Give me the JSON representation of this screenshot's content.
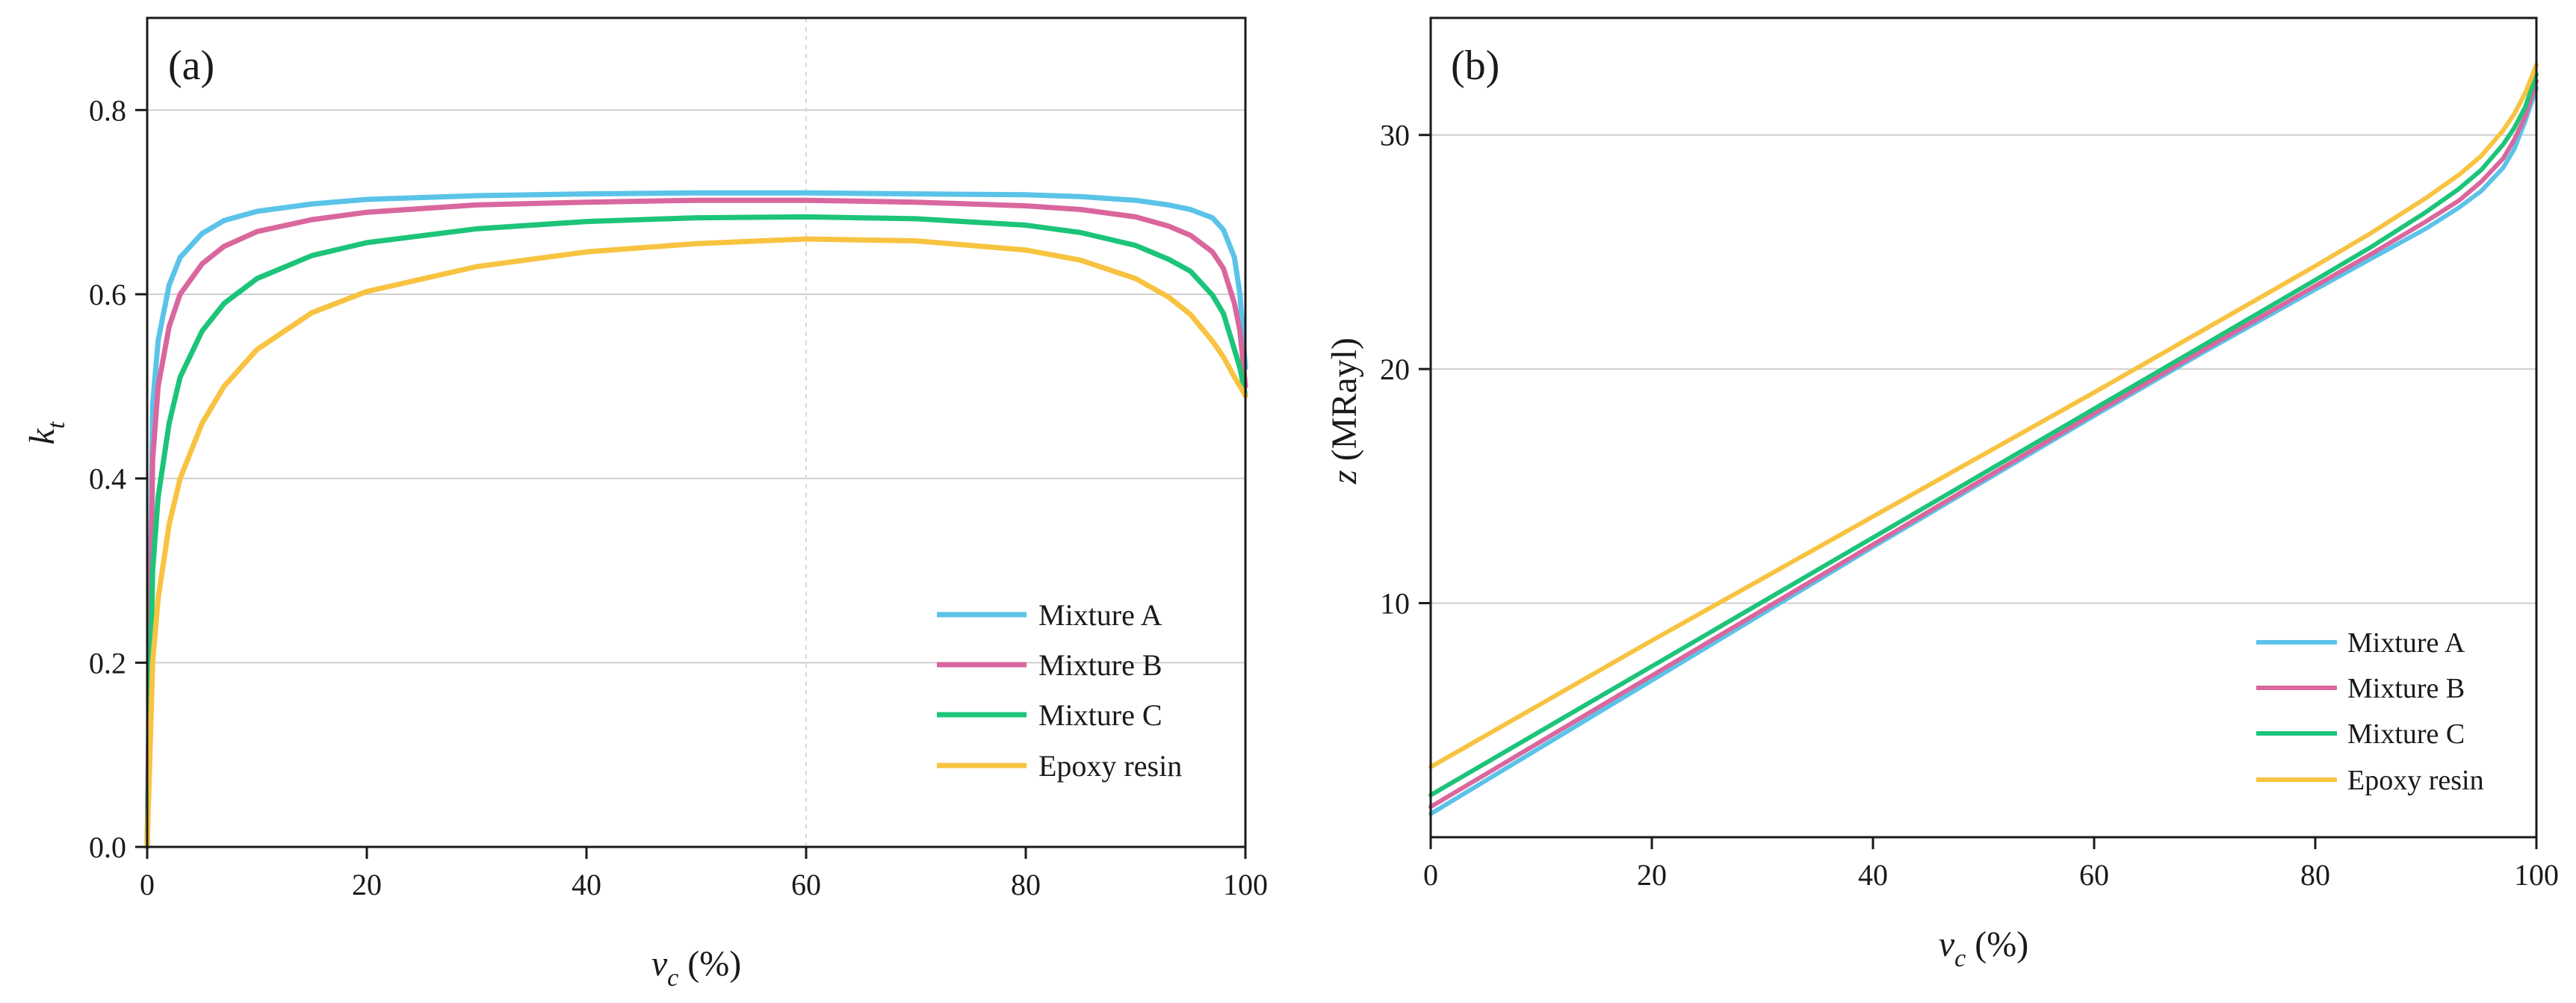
{
  "chart_data": [
    {
      "type": "line",
      "panel_label": "(a)",
      "xlabel_main": "v",
      "xlabel_sub": "c",
      "xlabel_unit": " (%)",
      "ylabel_main": "k",
      "ylabel_sub": "t",
      "xlim": [
        0,
        100
      ],
      "ylim": [
        0,
        0.9
      ],
      "xticks": [
        0,
        20,
        40,
        60,
        80,
        100
      ],
      "xtick_labels": [
        "0",
        "20",
        "40",
        "60",
        "80",
        "100"
      ],
      "yticks": [
        0.0,
        0.2,
        0.4,
        0.6,
        0.8
      ],
      "ytick_labels": [
        "0.0",
        "0.2",
        "0.4",
        "0.6",
        "0.8"
      ],
      "grid": "horizontal",
      "legend_position": "bottom-right",
      "x": [
        0,
        0.5,
        1,
        2,
        3,
        5,
        7,
        10,
        15,
        20,
        30,
        40,
        50,
        60,
        70,
        80,
        85,
        90,
        93,
        95,
        97,
        98,
        99,
        99.5,
        100
      ],
      "series": [
        {
          "name": "Mixture A",
          "color": "#5bc3e8",
          "values": [
            0.0,
            0.48,
            0.55,
            0.61,
            0.64,
            0.666,
            0.68,
            0.69,
            0.698,
            0.703,
            0.707,
            0.709,
            0.71,
            0.71,
            0.709,
            0.708,
            0.706,
            0.702,
            0.697,
            0.692,
            0.683,
            0.67,
            0.64,
            0.6,
            0.52
          ]
        },
        {
          "name": "Mixture B",
          "color": "#d9679e",
          "values": [
            0.0,
            0.42,
            0.5,
            0.565,
            0.6,
            0.633,
            0.652,
            0.668,
            0.681,
            0.689,
            0.697,
            0.7,
            0.702,
            0.702,
            0.7,
            0.696,
            0.692,
            0.684,
            0.674,
            0.664,
            0.646,
            0.628,
            0.59,
            0.56,
            0.5
          ]
        },
        {
          "name": "Mixture C",
          "color": "#1cc479",
          "values": [
            0.0,
            0.3,
            0.38,
            0.46,
            0.51,
            0.56,
            0.59,
            0.617,
            0.642,
            0.656,
            0.671,
            0.679,
            0.683,
            0.684,
            0.682,
            0.675,
            0.667,
            0.653,
            0.638,
            0.625,
            0.599,
            0.579,
            0.54,
            0.52,
            0.49
          ]
        },
        {
          "name": "Epoxy resin",
          "color": "#f7c340",
          "values": [
            0.0,
            0.2,
            0.27,
            0.35,
            0.4,
            0.46,
            0.5,
            0.54,
            0.58,
            0.603,
            0.63,
            0.646,
            0.655,
            0.66,
            0.658,
            0.648,
            0.637,
            0.617,
            0.597,
            0.578,
            0.549,
            0.532,
            0.51,
            0.5,
            0.49
          ]
        }
      ]
    },
    {
      "type": "line",
      "panel_label": "(b)",
      "xlabel_main": "v",
      "xlabel_sub": "c",
      "xlabel_unit": " (%)",
      "ylabel_main": "z",
      "ylabel_unit": " (MRayl)",
      "xlim": [
        0,
        100
      ],
      "ylim": [
        0,
        35
      ],
      "xticks": [
        0,
        20,
        40,
        60,
        80,
        100
      ],
      "xtick_labels": [
        "0",
        "20",
        "40",
        "60",
        "80",
        "100"
      ],
      "yticks": [
        10,
        20,
        30
      ],
      "ytick_labels": [
        "10",
        "20",
        "30"
      ],
      "grid": "horizontal",
      "legend_position": "bottom-right",
      "x": [
        0,
        10,
        20,
        30,
        40,
        50,
        60,
        70,
        80,
        85,
        90,
        93,
        95,
        97,
        98,
        99,
        100
      ],
      "series": [
        {
          "name": "Mixture A",
          "color": "#5bc3e8",
          "values": [
            1.0,
            3.85,
            6.7,
            9.55,
            12.4,
            15.2,
            18.0,
            20.75,
            23.4,
            24.7,
            26.0,
            26.9,
            27.6,
            28.6,
            29.4,
            30.6,
            32.0
          ]
        },
        {
          "name": "Mixture B",
          "color": "#d9679e",
          "values": [
            1.3,
            4.1,
            6.9,
            9.7,
            12.5,
            15.3,
            18.1,
            20.85,
            23.55,
            24.9,
            26.3,
            27.2,
            28.0,
            29.0,
            29.8,
            30.8,
            32.3
          ]
        },
        {
          "name": "Mixture C",
          "color": "#1cc479",
          "values": [
            1.8,
            4.55,
            7.3,
            10.05,
            12.8,
            15.55,
            18.3,
            21.05,
            23.8,
            25.2,
            26.7,
            27.7,
            28.5,
            29.6,
            30.3,
            31.2,
            32.6
          ]
        },
        {
          "name": "Epoxy resin",
          "color": "#f7c340",
          "values": [
            3.0,
            5.7,
            8.4,
            11.05,
            13.7,
            16.35,
            19.0,
            21.7,
            24.4,
            25.8,
            27.3,
            28.3,
            29.1,
            30.2,
            30.9,
            31.8,
            33.0
          ]
        }
      ]
    }
  ]
}
